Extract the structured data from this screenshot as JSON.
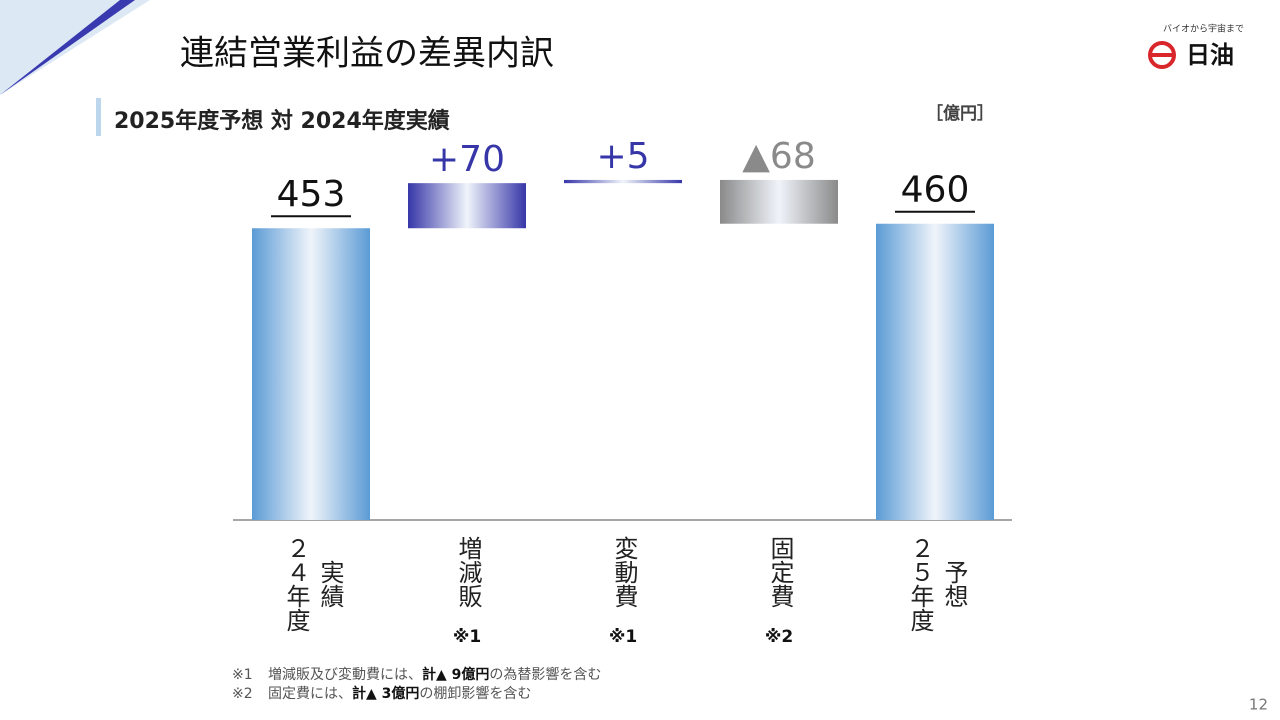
{
  "chart_data": {
    "type": "waterfall",
    "title": "連結営業利益の差異内訳",
    "subtitle": "2025年度予想 対 2024年度実績",
    "unit": "［億円］",
    "categories": [
      [
        "２４年度",
        "実績"
      ],
      [
        "増減販"
      ],
      [
        "変動費"
      ],
      [
        "固定費"
      ],
      [
        "２５年度",
        "予想"
      ]
    ],
    "category_notes": [
      null,
      "※1",
      "※1",
      "※2",
      null
    ],
    "values": [
      453,
      70,
      5,
      -68,
      460
    ],
    "value_labels": [
      "453",
      "+70",
      "+5",
      "▲68",
      "460"
    ],
    "colors": {
      "total": "#5b9bd5",
      "increase": "#3636a8",
      "decrease": "#8a8a8a"
    },
    "ylim": [
      0,
      590
    ]
  },
  "footnotes": [
    {
      "mark": "※1",
      "parts": [
        "増減販及び変動費には、",
        "計▲ 9億円",
        "の為替影響を含む"
      ]
    },
    {
      "mark": "※2",
      "parts": [
        "固定費には、",
        "計▲ 3億円",
        "の棚卸影響を含む"
      ]
    }
  ],
  "logo": {
    "tagline": "バイオから宇宙まで",
    "name": "日油"
  },
  "page_number": "12"
}
